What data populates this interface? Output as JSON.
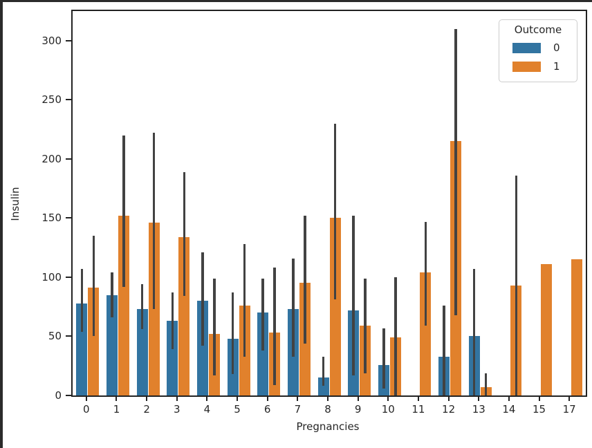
{
  "window": {
    "border_color": "#2b2b2b",
    "background": "#ffffff"
  },
  "chart_data": {
    "type": "bar",
    "title": "",
    "xlabel": "Pregnancies",
    "ylabel": "Insulin",
    "categories": [
      "0",
      "1",
      "2",
      "3",
      "4",
      "5",
      "6",
      "7",
      "8",
      "9",
      "10",
      "11",
      "12",
      "13",
      "14",
      "15",
      "17"
    ],
    "series": [
      {
        "name": "0",
        "color": "#3274a1",
        "values": [
          78,
          85,
          73,
          63,
          80,
          48,
          70,
          73,
          15,
          72,
          26,
          null,
          33,
          50,
          null,
          null,
          null
        ],
        "errors": [
          [
            54,
            107
          ],
          [
            66,
            104
          ],
          [
            56,
            94
          ],
          [
            39,
            87
          ],
          [
            42,
            121
          ],
          [
            18,
            87
          ],
          [
            38,
            99
          ],
          [
            33,
            116
          ],
          [
            8,
            33
          ],
          [
            17,
            152
          ],
          [
            6,
            57
          ],
          null,
          [
            0,
            76
          ],
          [
            0,
            107
          ],
          null,
          null,
          null
        ]
      },
      {
        "name": "1",
        "color": "#e1812c",
        "values": [
          91,
          152,
          146,
          134,
          52,
          76,
          53,
          95,
          150,
          59,
          49,
          104,
          215,
          7,
          93,
          111,
          115
        ],
        "errors": [
          [
            50,
            135
          ],
          [
            92,
            220
          ],
          [
            73,
            222
          ],
          [
            84,
            189
          ],
          [
            17,
            99
          ],
          [
            33,
            128
          ],
          [
            9,
            108
          ],
          [
            44,
            152
          ],
          [
            81,
            230
          ],
          [
            19,
            99
          ],
          [
            0,
            100
          ],
          [
            59,
            147
          ],
          [
            68,
            310
          ],
          [
            0,
            19
          ],
          [
            0,
            186
          ],
          null,
          null
        ]
      }
    ],
    "ylim": [
      0,
      325
    ],
    "yticks": [
      0,
      50,
      100,
      150,
      200,
      250,
      300
    ],
    "grid": "off",
    "legend": {
      "title": "Outcome",
      "position": "upper right",
      "entries": [
        "0",
        "1"
      ]
    },
    "error_bar_color": "#424242",
    "axis_color": "#222222"
  }
}
